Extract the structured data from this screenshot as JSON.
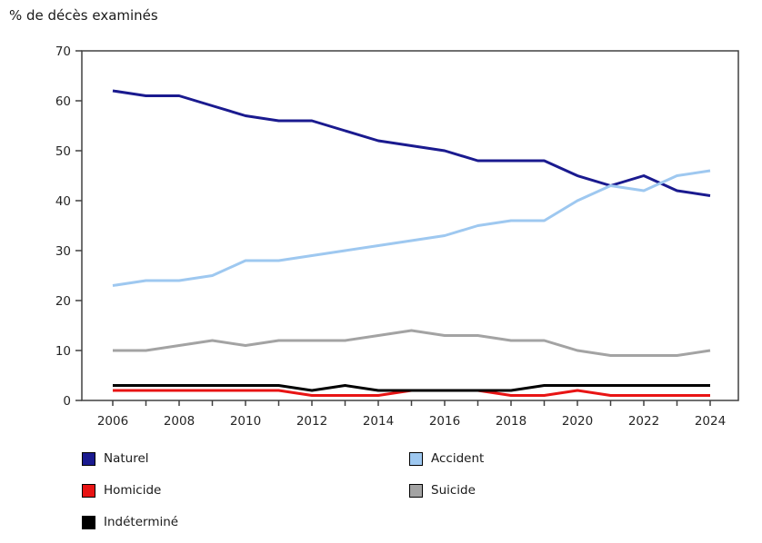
{
  "title": "% de décès examinés",
  "axis_color": "#404040",
  "text_color": "#262626",
  "chart_data": {
    "type": "line",
    "title": "% de décès examinés",
    "xlabel": "",
    "ylabel": "% de décès examinés",
    "x": [
      2006,
      2007,
      2008,
      2009,
      2010,
      2011,
      2012,
      2013,
      2014,
      2015,
      2016,
      2017,
      2018,
      2019,
      2020,
      2021,
      2022,
      2023,
      2024
    ],
    "x_tick_labels": [
      "2006",
      "2008",
      "2010",
      "2012",
      "2014",
      "2016",
      "2018",
      "2020",
      "2022",
      "2024"
    ],
    "ylim": [
      0,
      70
    ],
    "y_ticks": [
      0,
      10,
      20,
      30,
      40,
      50,
      60,
      70
    ],
    "grid": false,
    "legend_position": "bottom-left-two-columns",
    "series": [
      {
        "name": "Naturel",
        "color": "#1a1a8f",
        "values": [
          62,
          61,
          61,
          59,
          57,
          56,
          56,
          54,
          52,
          51,
          50,
          48,
          48,
          48,
          45,
          43,
          45,
          42,
          41
        ]
      },
      {
        "name": "Accident",
        "color": "#9ec8f0",
        "values": [
          23,
          24,
          24,
          25,
          28,
          28,
          29,
          30,
          31,
          32,
          33,
          35,
          36,
          36,
          40,
          43,
          42,
          45,
          46
        ]
      },
      {
        "name": "Homicide",
        "color": "#e81414",
        "values": [
          2,
          2,
          2,
          2,
          2,
          2,
          1,
          1,
          1,
          2,
          2,
          2,
          1,
          1,
          2,
          1,
          1,
          1,
          1
        ]
      },
      {
        "name": "Suicide",
        "color": "#a3a3a3",
        "values": [
          10,
          10,
          11,
          12,
          11,
          12,
          12,
          12,
          13,
          14,
          13,
          13,
          12,
          12,
          10,
          9,
          9,
          9,
          10
        ]
      },
      {
        "name": "Indéterminé",
        "color": "#000000",
        "values": [
          3,
          3,
          3,
          3,
          3,
          3,
          2,
          3,
          2,
          2,
          2,
          2,
          2,
          3,
          3,
          3,
          3,
          3,
          3
        ]
      }
    ]
  }
}
